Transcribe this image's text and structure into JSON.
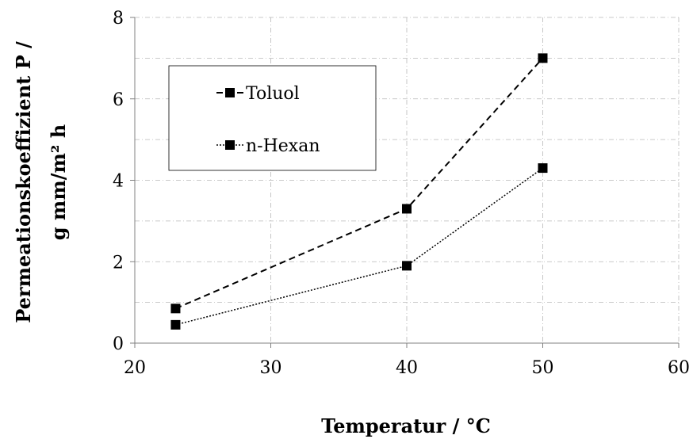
{
  "chart_data": {
    "type": "line",
    "xlabel": "Temperatur / °C",
    "ylabel_lines": [
      "Permeationskoeffizient P /",
      "g mm/m² h"
    ],
    "xlim": [
      20,
      60
    ],
    "ylim": [
      0,
      8
    ],
    "xticks": [
      "20",
      "30",
      "40",
      "50",
      "60"
    ],
    "yticks": [
      "0",
      "2",
      "4",
      "6",
      "8"
    ],
    "grid": true,
    "legend_position": "upper-left",
    "series": [
      {
        "name": "Toluol",
        "line_style": "dashed",
        "marker": "square",
        "color": "#000000",
        "x": [
          23,
          40,
          50
        ],
        "y": [
          0.85,
          3.3,
          7.0
        ]
      },
      {
        "name": "n-Hexan",
        "line_style": "dotted",
        "marker": "square",
        "color": "#000000",
        "x": [
          23,
          40,
          50
        ],
        "y": [
          0.45,
          1.9,
          4.3
        ]
      }
    ]
  }
}
